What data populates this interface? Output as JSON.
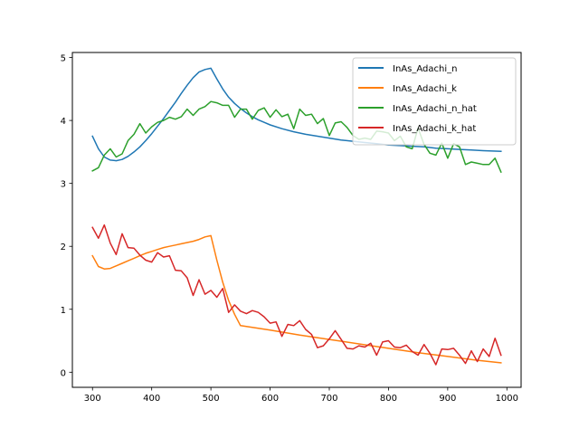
{
  "chart_data": {
    "type": "line",
    "title": "",
    "xlabel": "",
    "ylabel": "",
    "xlim": [
      266,
      1024
    ],
    "ylim": [
      -0.24,
      5.08
    ],
    "x_ticks": [
      300,
      400,
      500,
      600,
      700,
      800,
      900,
      1000
    ],
    "y_ticks": [
      0,
      1,
      2,
      3,
      4,
      5
    ],
    "legend_position": "top-right",
    "series": [
      {
        "name": "InAs_Adachi_n",
        "color": "#1f77b4",
        "x": [
          300,
          310,
          320,
          330,
          340,
          350,
          360,
          370,
          380,
          390,
          400,
          410,
          420,
          430,
          440,
          450,
          460,
          470,
          480,
          490,
          500,
          510,
          520,
          530,
          540,
          550,
          560,
          570,
          580,
          590,
          600,
          620,
          640,
          660,
          680,
          700,
          720,
          740,
          760,
          780,
          800,
          820,
          840,
          860,
          880,
          900,
          920,
          940,
          960,
          990
        ],
        "y": [
          3.75,
          3.55,
          3.42,
          3.37,
          3.36,
          3.38,
          3.43,
          3.5,
          3.58,
          3.68,
          3.79,
          3.91,
          4.03,
          4.16,
          4.29,
          4.43,
          4.56,
          4.68,
          4.77,
          4.81,
          4.83,
          4.66,
          4.5,
          4.37,
          4.27,
          4.19,
          4.12,
          4.06,
          4.01,
          3.97,
          3.93,
          3.87,
          3.82,
          3.78,
          3.75,
          3.72,
          3.69,
          3.67,
          3.65,
          3.63,
          3.61,
          3.6,
          3.59,
          3.58,
          3.56,
          3.55,
          3.54,
          3.53,
          3.52,
          3.51
        ]
      },
      {
        "name": "InAs_Adachi_k",
        "color": "#ff7f0e",
        "x": [
          300,
          310,
          320,
          330,
          340,
          350,
          360,
          370,
          380,
          390,
          400,
          410,
          420,
          430,
          440,
          450,
          460,
          470,
          480,
          490,
          500,
          510,
          520,
          530,
          540,
          550,
          600,
          650,
          700,
          750,
          800,
          850,
          900,
          950,
          990
        ],
        "y": [
          1.85,
          1.68,
          1.64,
          1.65,
          1.69,
          1.73,
          1.77,
          1.81,
          1.85,
          1.89,
          1.92,
          1.95,
          1.98,
          2.0,
          2.02,
          2.04,
          2.06,
          2.08,
          2.11,
          2.15,
          2.17,
          1.78,
          1.43,
          1.14,
          0.92,
          0.74,
          0.67,
          0.59,
          0.52,
          0.45,
          0.38,
          0.31,
          0.25,
          0.19,
          0.15
        ]
      },
      {
        "name": "InAs_Adachi_n_hat",
        "color": "#2ca02c",
        "x": [
          300,
          310,
          320,
          330,
          340,
          350,
          360,
          370,
          380,
          390,
          400,
          410,
          420,
          430,
          440,
          450,
          460,
          470,
          480,
          490,
          500,
          510,
          520,
          530,
          540,
          550,
          560,
          570,
          580,
          590,
          600,
          610,
          620,
          630,
          640,
          650,
          660,
          670,
          680,
          690,
          700,
          710,
          720,
          730,
          740,
          750,
          760,
          770,
          780,
          790,
          800,
          810,
          820,
          830,
          840,
          850,
          860,
          870,
          880,
          890,
          900,
          910,
          920,
          930,
          940,
          950,
          960,
          970,
          980,
          990
        ],
        "y": [
          3.2,
          3.25,
          3.45,
          3.55,
          3.42,
          3.47,
          3.68,
          3.78,
          3.95,
          3.8,
          3.9,
          3.97,
          4.0,
          4.05,
          4.02,
          4.06,
          4.18,
          4.08,
          4.18,
          4.22,
          4.3,
          4.28,
          4.24,
          4.24,
          4.05,
          4.18,
          4.18,
          4.02,
          4.16,
          4.2,
          4.05,
          4.17,
          4.06,
          4.1,
          3.87,
          4.18,
          4.08,
          4.1,
          3.95,
          4.03,
          3.76,
          3.96,
          3.98,
          3.89,
          3.76,
          3.7,
          3.72,
          3.7,
          3.83,
          3.82,
          3.8,
          3.68,
          3.75,
          3.58,
          3.55,
          3.88,
          3.62,
          3.48,
          3.45,
          3.64,
          3.4,
          3.63,
          3.58,
          3.3,
          3.34,
          3.32,
          3.3,
          3.3,
          3.4,
          3.18
        ]
      },
      {
        "name": "InAs_Adachi_k_hat",
        "color": "#d62728",
        "x": [
          300,
          310,
          320,
          330,
          340,
          350,
          360,
          370,
          380,
          390,
          400,
          410,
          420,
          430,
          440,
          450,
          460,
          470,
          480,
          490,
          500,
          510,
          520,
          530,
          540,
          550,
          560,
          570,
          580,
          590,
          600,
          610,
          620,
          630,
          640,
          650,
          660,
          670,
          680,
          690,
          700,
          710,
          720,
          730,
          740,
          750,
          760,
          770,
          780,
          790,
          800,
          810,
          820,
          830,
          840,
          850,
          860,
          870,
          880,
          890,
          900,
          910,
          920,
          930,
          940,
          950,
          960,
          970,
          980,
          990
        ],
        "y": [
          2.3,
          2.13,
          2.34,
          2.05,
          1.87,
          2.2,
          1.98,
          1.97,
          1.86,
          1.78,
          1.75,
          1.9,
          1.83,
          1.85,
          1.62,
          1.61,
          1.5,
          1.22,
          1.47,
          1.24,
          1.3,
          1.19,
          1.33,
          0.95,
          1.07,
          0.97,
          0.93,
          0.98,
          0.95,
          0.88,
          0.78,
          0.8,
          0.57,
          0.76,
          0.74,
          0.82,
          0.68,
          0.6,
          0.39,
          0.42,
          0.53,
          0.66,
          0.52,
          0.38,
          0.37,
          0.42,
          0.4,
          0.46,
          0.27,
          0.48,
          0.5,
          0.4,
          0.39,
          0.43,
          0.33,
          0.27,
          0.44,
          0.3,
          0.12,
          0.37,
          0.36,
          0.38,
          0.27,
          0.14,
          0.34,
          0.17,
          0.37,
          0.25,
          0.54,
          0.27
        ]
      }
    ]
  }
}
